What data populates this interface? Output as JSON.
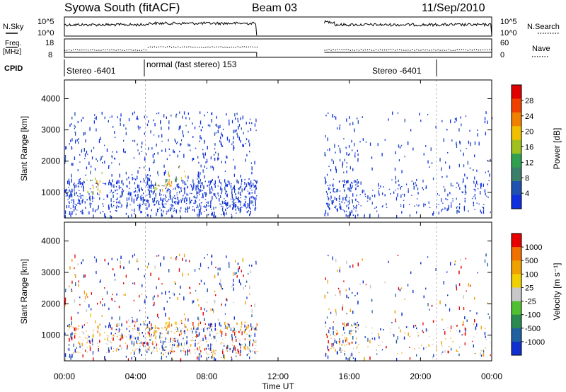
{
  "header": {
    "title": "Syowa South (fitACF)",
    "beam": "Beam 03",
    "date": "11/Sep/2010"
  },
  "top_panels": {
    "nsky_label": "N.Sky",
    "nsky_ticks": [
      "10^5",
      "10^0"
    ],
    "nsearch_label": "N.Search",
    "nsearch_ticks": [
      "10^5",
      "10^0"
    ],
    "freq_label_1": "Freq.",
    "freq_label_2": "[MHz]",
    "freq_ticks": [
      "18",
      "8"
    ],
    "nave_label": "Nave",
    "nave_ticks": [
      "60",
      "0"
    ],
    "cpid_label": "CPID",
    "cpid_segments": [
      "Stereo -6401",
      "normal (fast stereo) 153",
      "Stereo -6401"
    ]
  },
  "chart_data": [
    {
      "type": "heatmap",
      "ylabel": "Slant Range [km]",
      "yticks": [
        "4000",
        "3000",
        "2000",
        "1000"
      ],
      "ylim": [
        180,
        4600
      ],
      "colorbar_label": "Power [dB]",
      "colorbar_ticks": [
        "28",
        "24",
        "20",
        "16",
        "12",
        "8",
        "4"
      ],
      "colors": [
        "#1030e0",
        "#2050b0",
        "#3a7f6a",
        "#30a050",
        "#a0c020",
        "#f0c000",
        "#f08000",
        "#f04000",
        "#e00000"
      ]
    },
    {
      "type": "heatmap",
      "ylabel": "Slant Range [km]",
      "yticks": [
        "4000",
        "3000",
        "2000",
        "1000"
      ],
      "ylim": [
        180,
        4600
      ],
      "colorbar_label": "Velocity [m s⁻¹]",
      "colorbar_ticks": [
        "1000",
        "500",
        "100",
        "25",
        "-25",
        "-100",
        "-500",
        "-1000"
      ],
      "colors": [
        "#1030d0",
        "#2060a0",
        "#2a8a50",
        "#50c030",
        "#c8c8c8",
        "#f0d000",
        "#f0a000",
        "#f07000",
        "#e80000"
      ]
    }
  ],
  "x_axis": {
    "xlabel": "Time UT",
    "ticks": [
      "00:00",
      "04:00",
      "08:00",
      "12:00",
      "16:00",
      "20:00",
      "00:00"
    ]
  }
}
